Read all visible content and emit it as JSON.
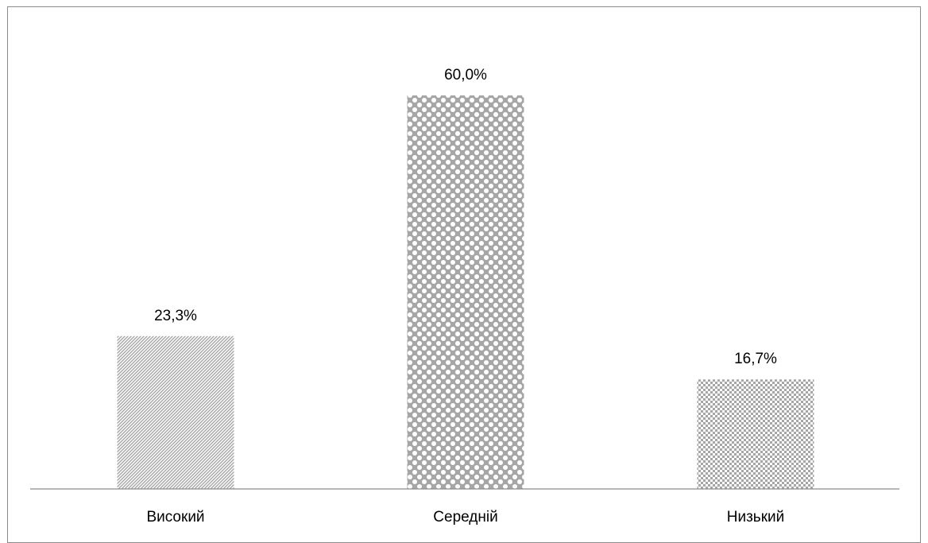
{
  "chart_data": {
    "type": "bar",
    "categories": [
      "Високий",
      "Середній",
      "Низький"
    ],
    "values": [
      23.3,
      60.0,
      16.7
    ],
    "value_labels": [
      "23,3%",
      "60,0%",
      "16,7%"
    ],
    "ylim": [
      0,
      60
    ],
    "grid": false,
    "legend": "none",
    "bar_color": "#a6a6a6",
    "patterns": [
      "diagonal-hatch",
      "diamond-dots",
      "checker"
    ]
  }
}
